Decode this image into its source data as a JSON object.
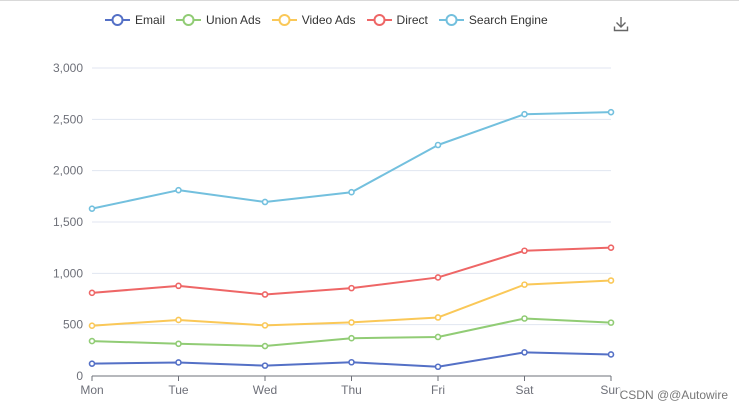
{
  "toolbox": {
    "download_icon": "download-icon"
  },
  "watermark": "CSDN @@Autowire",
  "colors": {
    "axis_label": "#6e7079",
    "grid": "#e0e6f1",
    "axis_line": "#6e7079"
  },
  "chart_data": {
    "type": "line",
    "title": "",
    "xlabel": "",
    "ylabel": "",
    "categories": [
      "Mon",
      "Tue",
      "Wed",
      "Thu",
      "Fri",
      "Sat",
      "Sun"
    ],
    "ylim": [
      0,
      3000
    ],
    "yticks": [
      0,
      500,
      1000,
      1500,
      2000,
      2500,
      3000
    ],
    "ytick_labels": [
      "0",
      "500",
      "1,000",
      "1,500",
      "2,000",
      "2,500",
      "3,000"
    ],
    "grid": true,
    "legend_position": "top",
    "series": [
      {
        "name": "Email",
        "color": "#5470c6",
        "values": [
          120,
          132,
          101,
          134,
          90,
          230,
          210
        ]
      },
      {
        "name": "Union Ads",
        "color": "#91cc75",
        "values": [
          220,
          182,
          191,
          234,
          290,
          330,
          310
        ]
      },
      {
        "name": "Video Ads",
        "color": "#fac858",
        "values": [
          150,
          232,
          201,
          154,
          190,
          330,
          410
        ]
      },
      {
        "name": "Direct",
        "color": "#ee6666",
        "values": [
          320,
          332,
          301,
          334,
          390,
          330,
          320
        ]
      },
      {
        "name": "Search Engine",
        "color": "#73c0de",
        "values": [
          820,
          932,
          901,
          934,
          1290,
          1330,
          1320
        ]
      }
    ],
    "stacked": true
  }
}
